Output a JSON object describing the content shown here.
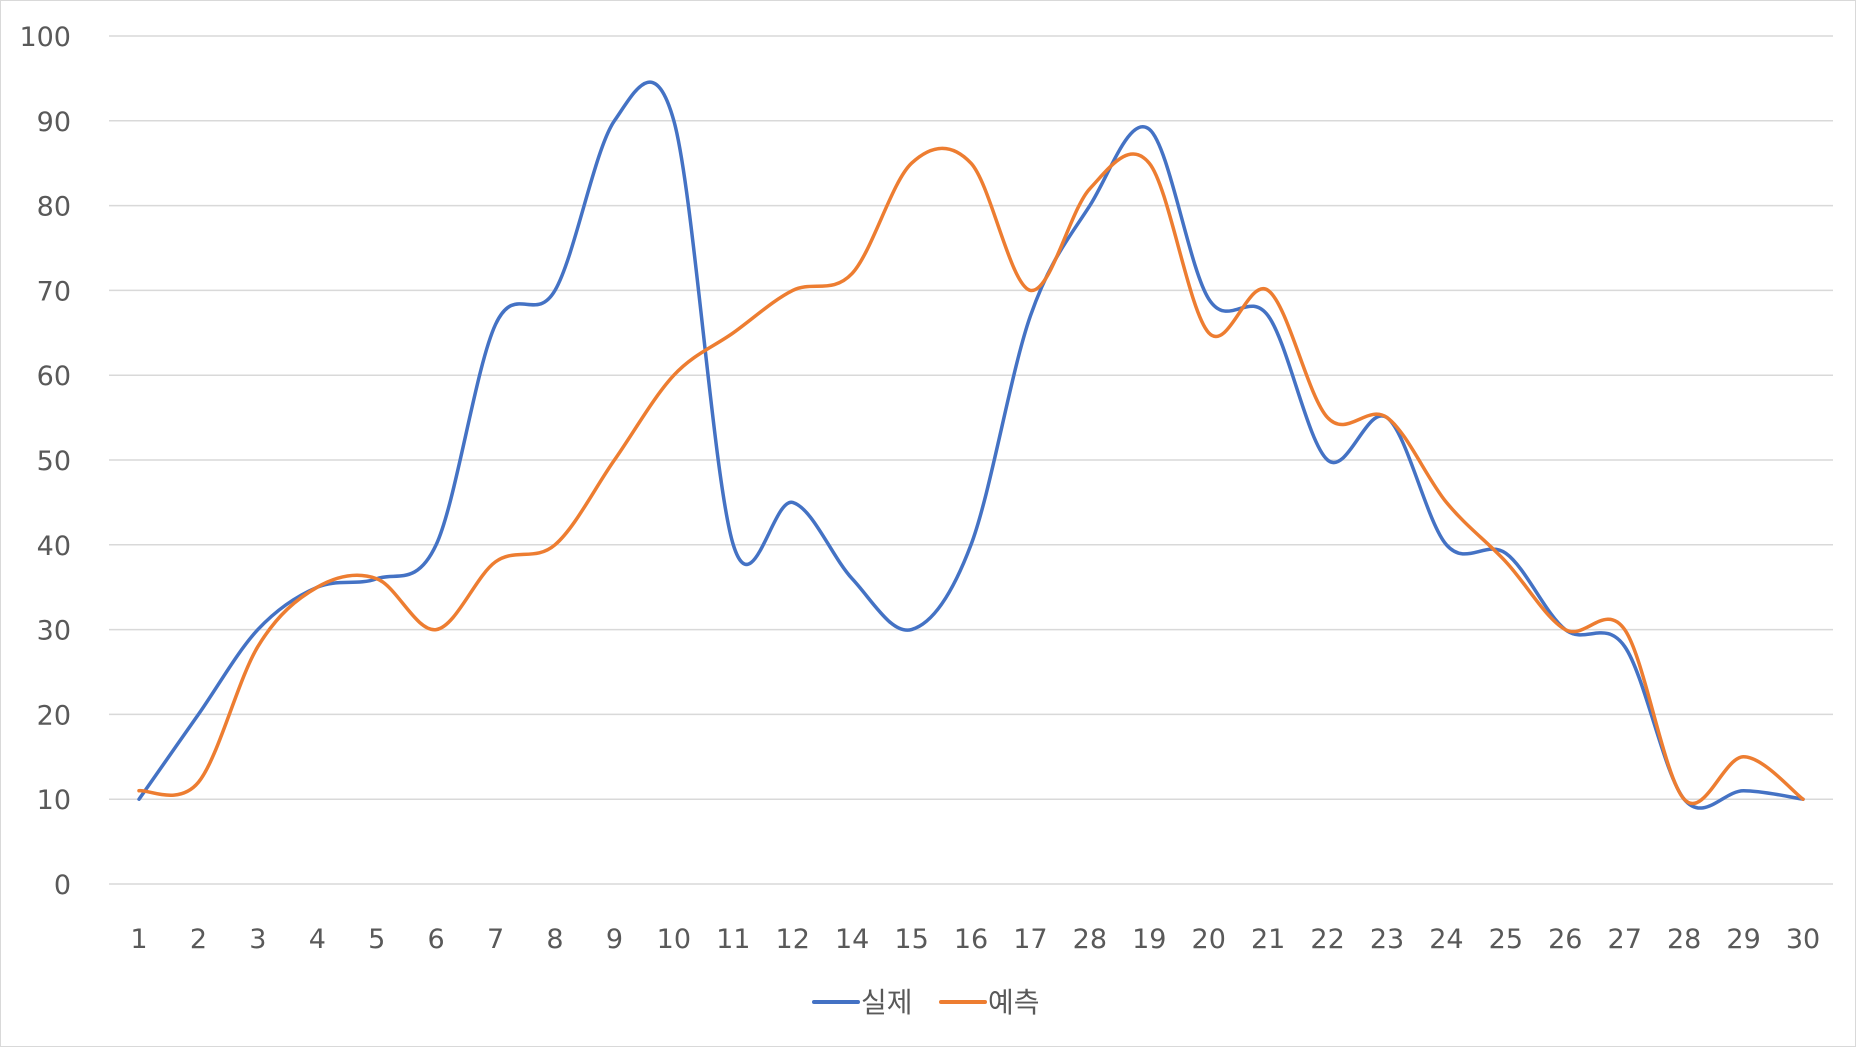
{
  "chart_data": {
    "type": "line",
    "title": "",
    "xlabel": "",
    "ylabel": "",
    "ylim": [
      0,
      100
    ],
    "yticks": [
      0,
      10,
      20,
      30,
      40,
      50,
      60,
      70,
      80,
      90,
      100
    ],
    "grid": "horizontal",
    "smooth": true,
    "legend_position": "bottom",
    "categories": [
      "1",
      "2",
      "3",
      "4",
      "5",
      "6",
      "7",
      "8",
      "9",
      "10",
      "11",
      "12",
      "14",
      "15",
      "16",
      "17",
      "28",
      "19",
      "20",
      "21",
      "22",
      "23",
      "24",
      "25",
      "26",
      "27",
      "28",
      "29",
      "30"
    ],
    "series": [
      {
        "name": "실제",
        "color": "#4472C4",
        "values": [
          10,
          20,
          30,
          35,
          36,
          40,
          66,
          70,
          90,
          90,
          40,
          45,
          36,
          30,
          40,
          67,
          80,
          89,
          69,
          67,
          50,
          55,
          40,
          39,
          30,
          28,
          10,
          11,
          10
        ]
      },
      {
        "name": "예측",
        "color": "#ED7D31",
        "values": [
          11,
          12,
          28,
          35,
          36,
          30,
          38,
          40,
          50,
          60,
          65,
          70,
          72,
          85,
          85,
          70,
          82,
          85,
          65,
          70,
          55,
          55,
          45,
          38,
          30,
          30,
          10,
          15,
          10
        ]
      }
    ]
  }
}
